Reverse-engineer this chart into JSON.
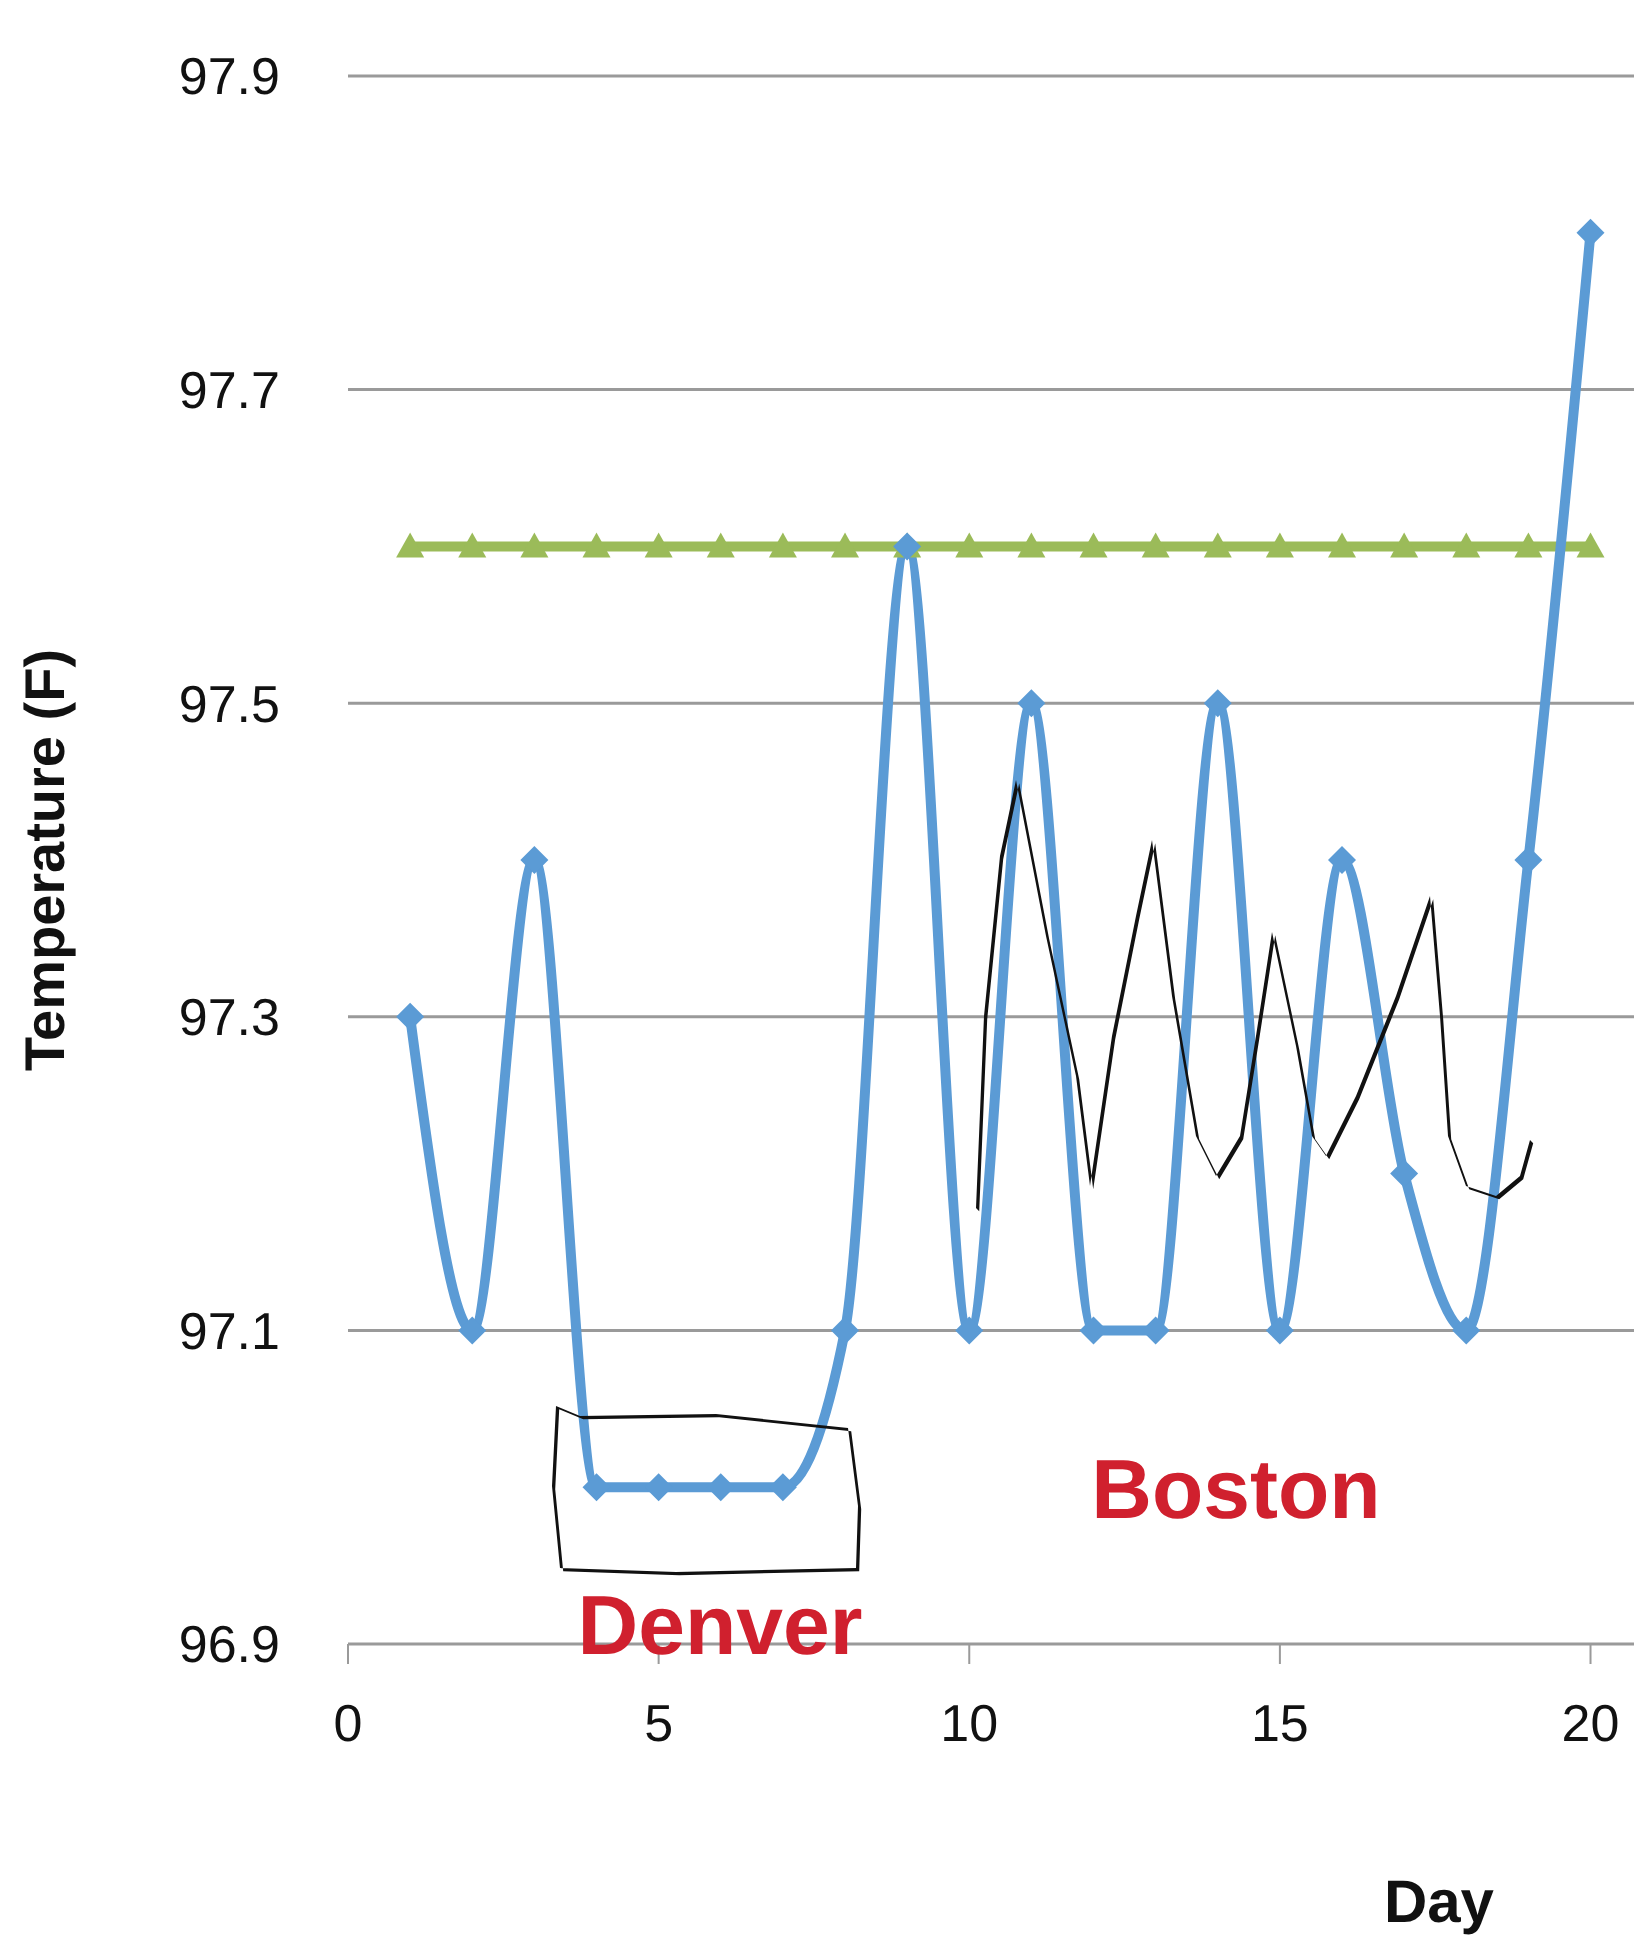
{
  "chart_data": {
    "type": "line",
    "xlabel": "Day",
    "ylabel": "Temperature (F)",
    "xlim": [
      0,
      20.7
    ],
    "xticks": [
      0,
      5,
      10,
      15,
      20
    ],
    "ylim": [
      96.9,
      97.9
    ],
    "yticks": [
      96.9,
      97.1,
      97.3,
      97.5,
      97.7,
      97.9
    ],
    "grid": "y",
    "legend": false,
    "line_style": "solid",
    "series": [
      {
        "color": "#5b9bd5",
        "marker": "diamond",
        "x": [
          1,
          2,
          3,
          4,
          5,
          6,
          7,
          8,
          9,
          10,
          11,
          12,
          13,
          14,
          15,
          16,
          17,
          18,
          19,
          20
        ],
        "values": [
          97.3,
          97.1,
          97.4,
          97.0,
          97.0,
          97.0,
          97.0,
          97.1,
          97.6,
          97.1,
          97.5,
          97.1,
          97.1,
          97.5,
          97.1,
          97.4,
          97.2,
          97.1,
          97.4,
          97.8
        ]
      },
      {
        "color": "#9bbb59",
        "marker": "triangle",
        "x": [
          1,
          2,
          3,
          4,
          5,
          6,
          7,
          8,
          9,
          10,
          11,
          12,
          13,
          14,
          15,
          16,
          17,
          18,
          19,
          20
        ],
        "values": [
          97.6,
          97.6,
          97.6,
          97.6,
          97.6,
          97.6,
          97.6,
          97.6,
          97.6,
          97.6,
          97.6,
          97.6,
          97.6,
          97.6,
          97.6,
          97.6,
          97.6,
          97.6,
          97.6,
          97.6
        ]
      }
    ],
    "annotations": [
      "Denver",
      "Boston"
    ]
  }
}
